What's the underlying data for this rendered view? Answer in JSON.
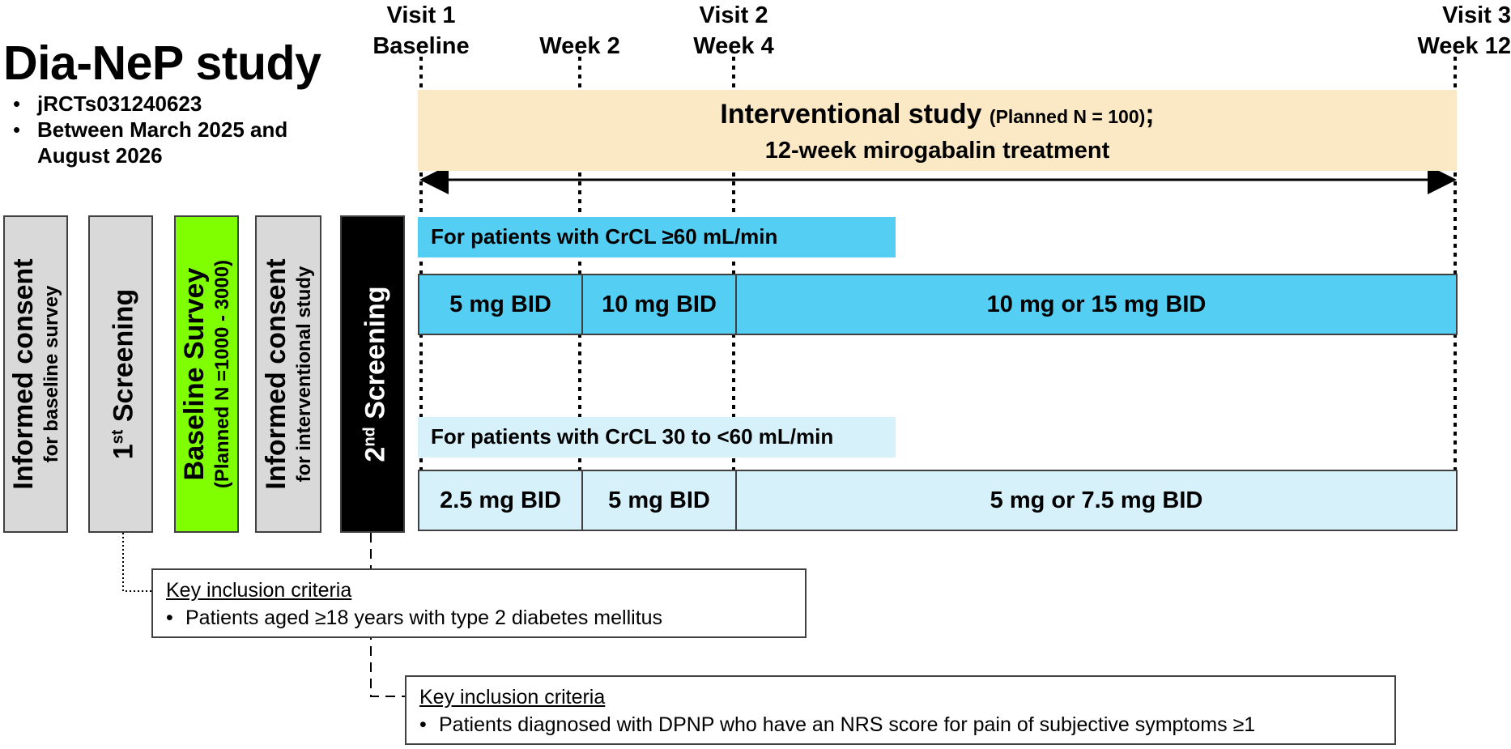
{
  "title": "Dia-NeP study",
  "study_info": [
    "jRCTs031240623",
    "Between March 2025 and August 2026"
  ],
  "visits": [
    {
      "line1": "Visit 1",
      "line2": "Baseline"
    },
    {
      "line1": "",
      "line2": "Week 2"
    },
    {
      "line1": "Visit 2",
      "line2": "Week 4"
    },
    {
      "line1": "Visit 3",
      "line2": "Week 12"
    }
  ],
  "steps": [
    {
      "main": "Informed consent",
      "sub": "for baseline survey",
      "color": "#d9d9d9"
    },
    {
      "main": "1",
      "sup": "st",
      "main_rest": " Screening",
      "color": "#d9d9d9"
    },
    {
      "main": "Baseline Survey",
      "sub": "(Planned N =1000 - 3000)",
      "color": "#7fff00"
    },
    {
      "main": "Informed consent",
      "sub": "for interventional study",
      "color": "#d9d9d9"
    },
    {
      "main": "2",
      "sup": "nd",
      "main_rest": " Screening",
      "color": "#000000"
    }
  ],
  "interventional": {
    "line1": "Interventional study",
    "line1_small": "(Planned N = 100)",
    "line1_end": ";",
    "line2": "12-week mirogabalin treatment",
    "color": "#fbe8c5"
  },
  "group_high": {
    "label": "For patients with CrCL ≥60 mL/min",
    "color": "#55cef4",
    "doses": [
      "5 mg BID",
      "10 mg BID",
      "10 mg or 15 mg BID"
    ]
  },
  "group_low": {
    "label": "For patients with CrCL 30 to <60 mL/min",
    "color": "#d7f1fb",
    "doses": [
      "2.5 mg BID",
      "5 mg BID",
      "5 mg or 7.5 mg BID"
    ]
  },
  "criteria_1": {
    "heading": "Key inclusion criteria",
    "item": "Patients aged ≥18 years with type 2 diabetes mellitus"
  },
  "criteria_2": {
    "heading": "Key inclusion criteria",
    "item": "Patients diagnosed with DPNP who have an NRS score for pain of subjective symptoms ≥1"
  }
}
